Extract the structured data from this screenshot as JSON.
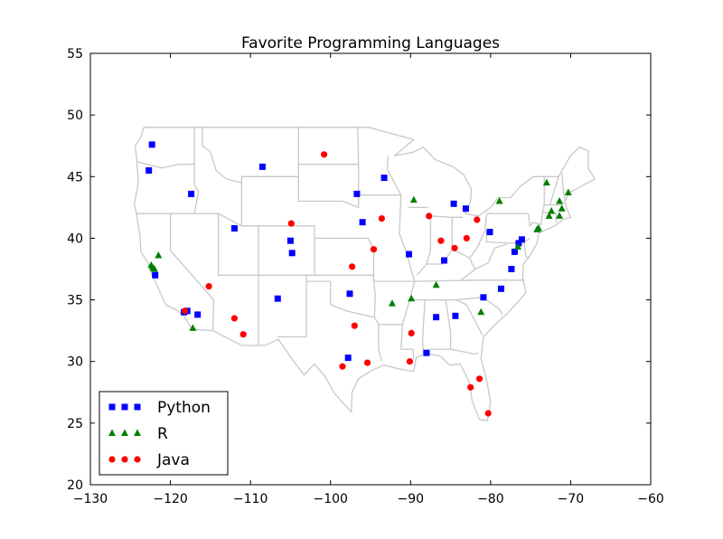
{
  "chart_data": {
    "type": "scatter",
    "title": "Favorite Programming Languages",
    "xlabel": "",
    "ylabel": "",
    "xlim": [
      -130,
      -60
    ],
    "ylim": [
      20,
      55
    ],
    "x_ticks": [
      -130,
      -120,
      -110,
      -100,
      -90,
      -80,
      -70,
      -60
    ],
    "y_ticks": [
      20,
      25,
      30,
      35,
      40,
      45,
      50,
      55
    ],
    "x_tick_labels": [
      "−130",
      "−120",
      "−110",
      "−100",
      "−90",
      "−80",
      "−70",
      "−60"
    ],
    "y_tick_labels": [
      "20",
      "25",
      "30",
      "35",
      "40",
      "45",
      "50",
      "55"
    ],
    "grid": false,
    "legend_position": "lower-left",
    "series": [
      {
        "name": "Python",
        "color": "#0000ff",
        "marker": "square",
        "points": [
          [
            -122.3,
            47.6
          ],
          [
            -122.7,
            45.5
          ],
          [
            -117.4,
            43.6
          ],
          [
            -108.5,
            45.8
          ],
          [
            -112.0,
            40.8
          ],
          [
            -121.9,
            37.0
          ],
          [
            -118.3,
            34.0
          ],
          [
            -117.9,
            34.1
          ],
          [
            -116.6,
            33.8
          ],
          [
            -105.0,
            39.8
          ],
          [
            -104.8,
            38.8
          ],
          [
            -106.6,
            35.1
          ],
          [
            -96.7,
            43.6
          ],
          [
            -96.0,
            41.3
          ],
          [
            -93.3,
            44.9
          ],
          [
            -90.2,
            38.7
          ],
          [
            -97.6,
            35.5
          ],
          [
            -97.8,
            30.3
          ],
          [
            -88.0,
            30.7
          ],
          [
            -86.8,
            33.6
          ],
          [
            -84.4,
            33.7
          ],
          [
            -85.8,
            38.2
          ],
          [
            -84.6,
            42.8
          ],
          [
            -83.1,
            42.4
          ],
          [
            -80.1,
            40.5
          ],
          [
            -80.9,
            35.2
          ],
          [
            -78.7,
            35.9
          ],
          [
            -77.4,
            37.5
          ],
          [
            -77.0,
            38.9
          ],
          [
            -76.5,
            39.6
          ],
          [
            -76.1,
            39.9
          ]
        ]
      },
      {
        "name": "R",
        "color": "#008000",
        "marker": "triangle",
        "points": [
          [
            -122.4,
            37.8
          ],
          [
            -122.2,
            37.6
          ],
          [
            -122.0,
            37.5
          ],
          [
            -121.5,
            38.6
          ],
          [
            -117.2,
            32.7
          ],
          [
            -89.6,
            43.1
          ],
          [
            -86.8,
            36.2
          ],
          [
            -89.9,
            35.1
          ],
          [
            -92.3,
            34.7
          ],
          [
            -81.2,
            34.0
          ],
          [
            -78.9,
            43.0
          ],
          [
            -76.6,
            39.3
          ],
          [
            -74.2,
            40.7
          ],
          [
            -74.0,
            40.8
          ],
          [
            -73.0,
            44.5
          ],
          [
            -72.7,
            41.8
          ],
          [
            -72.4,
            42.2
          ],
          [
            -71.4,
            41.8
          ],
          [
            -71.1,
            42.4
          ],
          [
            -71.4,
            43.0
          ],
          [
            -70.3,
            43.7
          ]
        ]
      },
      {
        "name": "Java",
        "color": "#ff0000",
        "marker": "circle",
        "points": [
          [
            -100.8,
            46.8
          ],
          [
            -104.9,
            41.2
          ],
          [
            -93.6,
            41.6
          ],
          [
            -94.6,
            39.1
          ],
          [
            -97.3,
            37.7
          ],
          [
            -115.2,
            36.1
          ],
          [
            -118.2,
            34.1
          ],
          [
            -112.0,
            33.5
          ],
          [
            -110.9,
            32.2
          ],
          [
            -97.0,
            32.9
          ],
          [
            -98.5,
            29.6
          ],
          [
            -95.4,
            29.9
          ],
          [
            -90.1,
            30.0
          ],
          [
            -89.9,
            32.3
          ],
          [
            -87.7,
            41.8
          ],
          [
            -86.2,
            39.8
          ],
          [
            -84.5,
            39.2
          ],
          [
            -83.0,
            40.0
          ],
          [
            -81.7,
            41.5
          ],
          [
            -82.5,
            27.9
          ],
          [
            -81.4,
            28.6
          ],
          [
            -80.3,
            25.8
          ]
        ]
      }
    ]
  }
}
